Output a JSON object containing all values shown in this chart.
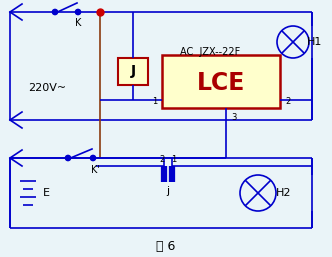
{
  "bg_color": "#eaf4f8",
  "line_color": "#0000cc",
  "brown_line": "#8b3a10",
  "lce_fill": "#ffffcc",
  "lce_border": "#aa0000",
  "j_fill": "#ffffcc",
  "j_border": "#aa0000",
  "red_dot": "#cc0000",
  "title": "图 6",
  "label_220": "220V~",
  "label_K": "K",
  "label_AC_JZX": "AC  JZX--22F",
  "label_LCE": "LCE",
  "label_J": "J",
  "label_H1": "H1",
  "label_H2": "H2",
  "label_E": "E",
  "label_Kp": "K'",
  "label_j": "j",
  "label_1": "1",
  "label_2": "2",
  "label_3": "3"
}
